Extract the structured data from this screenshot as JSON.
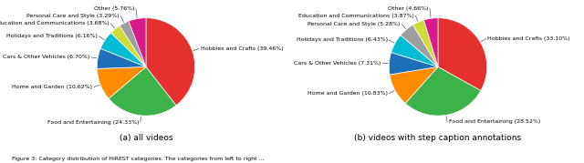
{
  "chart_data": [
    {
      "type": "pie",
      "title": "(a) all videos",
      "categories": [
        "Hobbies and Crafts (39.46%)",
        "Food and Entertaining (24.33%)",
        "Home and Garden (10.62%)",
        "Cars & Other Vehicles (6.70%)",
        "Holidays and Traditions (6.16%)",
        "Education and Communications (3.68%)",
        "Personal Care and Style (3.29%)",
        "Other (5.76%)"
      ],
      "values": [
        39.46,
        24.33,
        10.62,
        6.7,
        6.16,
        3.68,
        3.29,
        5.76
      ],
      "colors": [
        "#e63030",
        "#3cb34a",
        "#ff8c00",
        "#1e6fba",
        "#00bcd4",
        "#cddc39",
        "#9e9e9e",
        "#d81b8c"
      ]
    },
    {
      "type": "pie",
      "title": "(b) videos with step caption annotations",
      "categories": [
        "Hobbies and Crafts (33.10%)",
        "Food and Entertaining (28.52%)",
        "Home and Garden (10.83%)",
        "Cars & Other Vehicles (7.31%)",
        "Holidays and Traditions (6.43%)",
        "Personal Care and Style (5.28%)",
        "Education and Communications (3.87%)",
        "Other (4.66%)"
      ],
      "values": [
        33.1,
        28.52,
        10.83,
        7.31,
        6.43,
        5.28,
        3.87,
        4.66
      ],
      "colors": [
        "#e63030",
        "#3cb34a",
        "#ff8c00",
        "#1e6fba",
        "#00bcd4",
        "#9e9e9e",
        "#cddc39",
        "#d81b8c"
      ]
    }
  ],
  "caption": "Figure 3: Category distribution of HiREST categories. The categories from left to right ..."
}
